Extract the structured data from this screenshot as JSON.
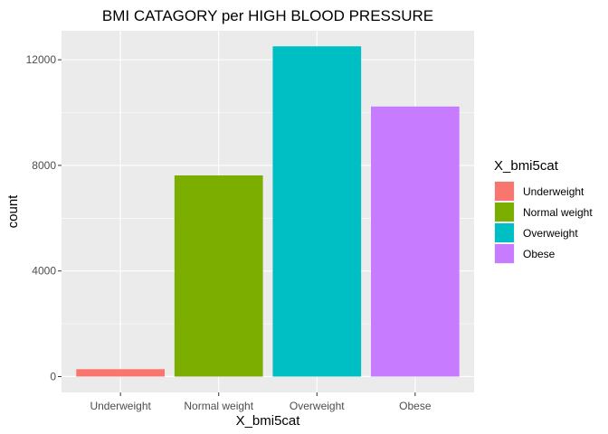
{
  "chart_data": {
    "type": "bar",
    "title": "BMI CATAGORY per HIGH BLOOD PRESSURE",
    "xlabel": "X_bmi5cat",
    "ylabel": "count",
    "categories": [
      "Underweight",
      "Normal weight",
      "Overweight",
      "Obese"
    ],
    "values": [
      280,
      7620,
      12510,
      10230
    ],
    "colors": [
      "#F8766D",
      "#7CAE00",
      "#00BFC4",
      "#C77CFF"
    ],
    "ylim": [
      -600,
      13100
    ],
    "yticks": [
      0,
      4000,
      8000,
      12000
    ],
    "ytick_labels": [
      "0",
      "4000",
      "8000",
      "12000"
    ],
    "grid": true,
    "legend": {
      "title": "X_bmi5cat",
      "position": "right",
      "items": [
        "Underweight",
        "Normal weight",
        "Overweight",
        "Obese"
      ]
    }
  }
}
